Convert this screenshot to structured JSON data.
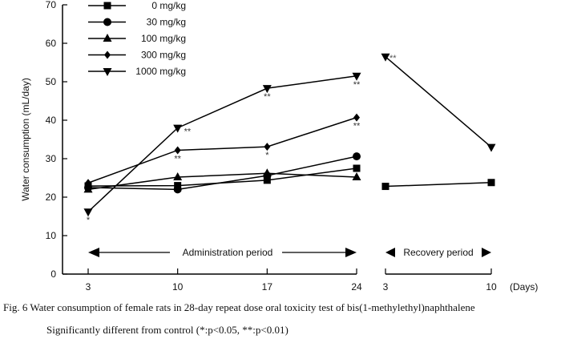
{
  "chart_data": {
    "type": "line",
    "ylabel": "Water consumption (mL/day)",
    "xlabel_unit": "(Days)",
    "ylim": [
      0,
      70
    ],
    "yticks": [
      0,
      10,
      20,
      30,
      40,
      50,
      60,
      70
    ],
    "periods": [
      {
        "name": "Administration period",
        "ticks": [
          "3",
          "10",
          "17",
          "24"
        ],
        "x": [
          3,
          10,
          17,
          24
        ]
      },
      {
        "name": "Recovery period",
        "ticks": [
          "3",
          "10"
        ],
        "x": [
          3,
          10
        ]
      }
    ],
    "series": [
      {
        "name": "0 mg/kg",
        "marker": "square",
        "admin": [
          22.9,
          23.0,
          24.4,
          27.5
        ],
        "recovery": [
          22.8,
          23.8
        ],
        "admin_sig": [
          "",
          "",
          "",
          ""
        ],
        "recovery_sig": [
          "",
          ""
        ]
      },
      {
        "name": "30 mg/kg",
        "marker": "circle",
        "admin": [
          22.5,
          22.0,
          25.6,
          30.6
        ],
        "recovery": null,
        "admin_sig": [
          "",
          "",
          "",
          ""
        ]
      },
      {
        "name": "100 mg/kg",
        "marker": "triangle-up",
        "admin": [
          22.0,
          25.2,
          26.2,
          25.2
        ],
        "recovery": null,
        "admin_sig": [
          "",
          "",
          "",
          ""
        ]
      },
      {
        "name": "300 mg/kg",
        "marker": "diamond",
        "admin": [
          23.7,
          32.2,
          33.1,
          40.7
        ],
        "recovery": null,
        "admin_sig": [
          "",
          "**",
          "*",
          "**"
        ]
      },
      {
        "name": "1000 mg/kg",
        "marker": "triangle-down",
        "admin": [
          16.2,
          38.0,
          48.3,
          51.5
        ],
        "recovery": [
          56.5,
          33.0
        ],
        "admin_sig": [
          "*",
          "**",
          "**",
          "**"
        ],
        "recovery_sig": [
          "**",
          ""
        ]
      }
    ],
    "legend_position": "top-left"
  },
  "caption": {
    "line1": "Fig. 6   Water consumption of female rats in 28-day repeat dose oral toxicity test of bis(1-methylethyl)naphthalene",
    "line2": "Significantly different from control (*:p<0.05,  **:p<0.01)"
  }
}
